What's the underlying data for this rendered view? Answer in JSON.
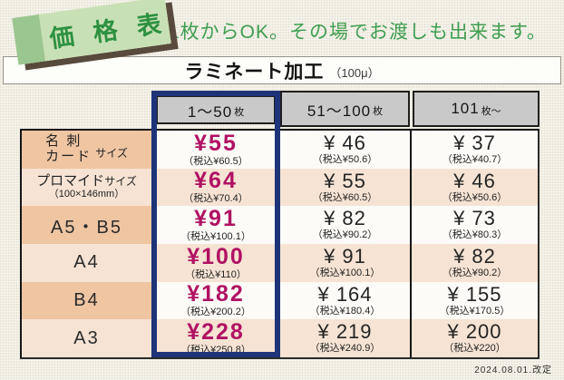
{
  "badge": {
    "text": "価 格 表"
  },
  "headline": "1枚からOK。その場でお渡しも出来ます。",
  "title_bar": {
    "title": "ラミネート加工",
    "suffix": "（100μ）"
  },
  "table": {
    "col_headers": [
      {
        "range": "1～50",
        "unit": "枚"
      },
      {
        "range": "51～100",
        "unit": "枚"
      },
      {
        "range": "101",
        "unit": "枚～"
      }
    ],
    "rows": [
      {
        "label_line1": "名 刺",
        "label_line2": "カード",
        "size_suffix": "サイズ",
        "note": "",
        "prices": [
          {
            "amount": "¥55",
            "tax": "（税込¥60.5）"
          },
          {
            "amount": "¥ 46",
            "tax": "（税込¥50.6）"
          },
          {
            "amount": "¥ 37",
            "tax": "（税込¥40.7）"
          }
        ]
      },
      {
        "label_line1": "プロマイド",
        "label_line2": "",
        "size_suffix": "サイズ",
        "note": "（100×146mm）",
        "prices": [
          {
            "amount": "¥64",
            "tax": "（税込¥70.4）"
          },
          {
            "amount": "¥ 55",
            "tax": "（税込¥60.5）"
          },
          {
            "amount": "¥ 46",
            "tax": "（税込¥50.6）"
          }
        ]
      },
      {
        "label_line1": "A5・B5",
        "label_line2": "",
        "size_suffix": "",
        "note": "",
        "prices": [
          {
            "amount": "¥91",
            "tax": "（税込¥100.1）"
          },
          {
            "amount": "¥ 82",
            "tax": "（税込¥90.2）"
          },
          {
            "amount": "¥ 73",
            "tax": "（税込¥80.3）"
          }
        ]
      },
      {
        "label_line1": "A4",
        "label_line2": "",
        "size_suffix": "",
        "note": "",
        "prices": [
          {
            "amount": "¥100",
            "tax": "（税込¥110）"
          },
          {
            "amount": "¥ 91",
            "tax": "（税込¥100.1）"
          },
          {
            "amount": "¥ 82",
            "tax": "（税込¥90.2）"
          }
        ]
      },
      {
        "label_line1": "B4",
        "label_line2": "",
        "size_suffix": "",
        "note": "",
        "prices": [
          {
            "amount": "¥182",
            "tax": "（税込¥200.2）"
          },
          {
            "amount": "¥ 164",
            "tax": "（税込¥180.4）"
          },
          {
            "amount": "¥ 155",
            "tax": "（税込¥170.5）"
          }
        ]
      },
      {
        "label_line1": "A3",
        "label_line2": "",
        "size_suffix": "",
        "note": "",
        "prices": [
          {
            "amount": "¥228",
            "tax": "（税込¥250.8）"
          },
          {
            "amount": "¥ 219",
            "tax": "（税込¥240.9）"
          },
          {
            "amount": "¥ 200",
            "tax": "（税込¥220）"
          }
        ]
      }
    ]
  },
  "footer": {
    "revision": "2024.08.01.改定"
  },
  "colors": {
    "highlight_navy": "#1d3478",
    "featured_price_magenta": "#b01263",
    "brand_green": "#3f9e50",
    "badge_green_light": "#c8e0b5",
    "badge_green_dark": "#9cc68f",
    "header_gray": "#c9c9c9",
    "row_peach_dark": "#efc5a2",
    "row_peach_light": "#f6e3d3"
  }
}
